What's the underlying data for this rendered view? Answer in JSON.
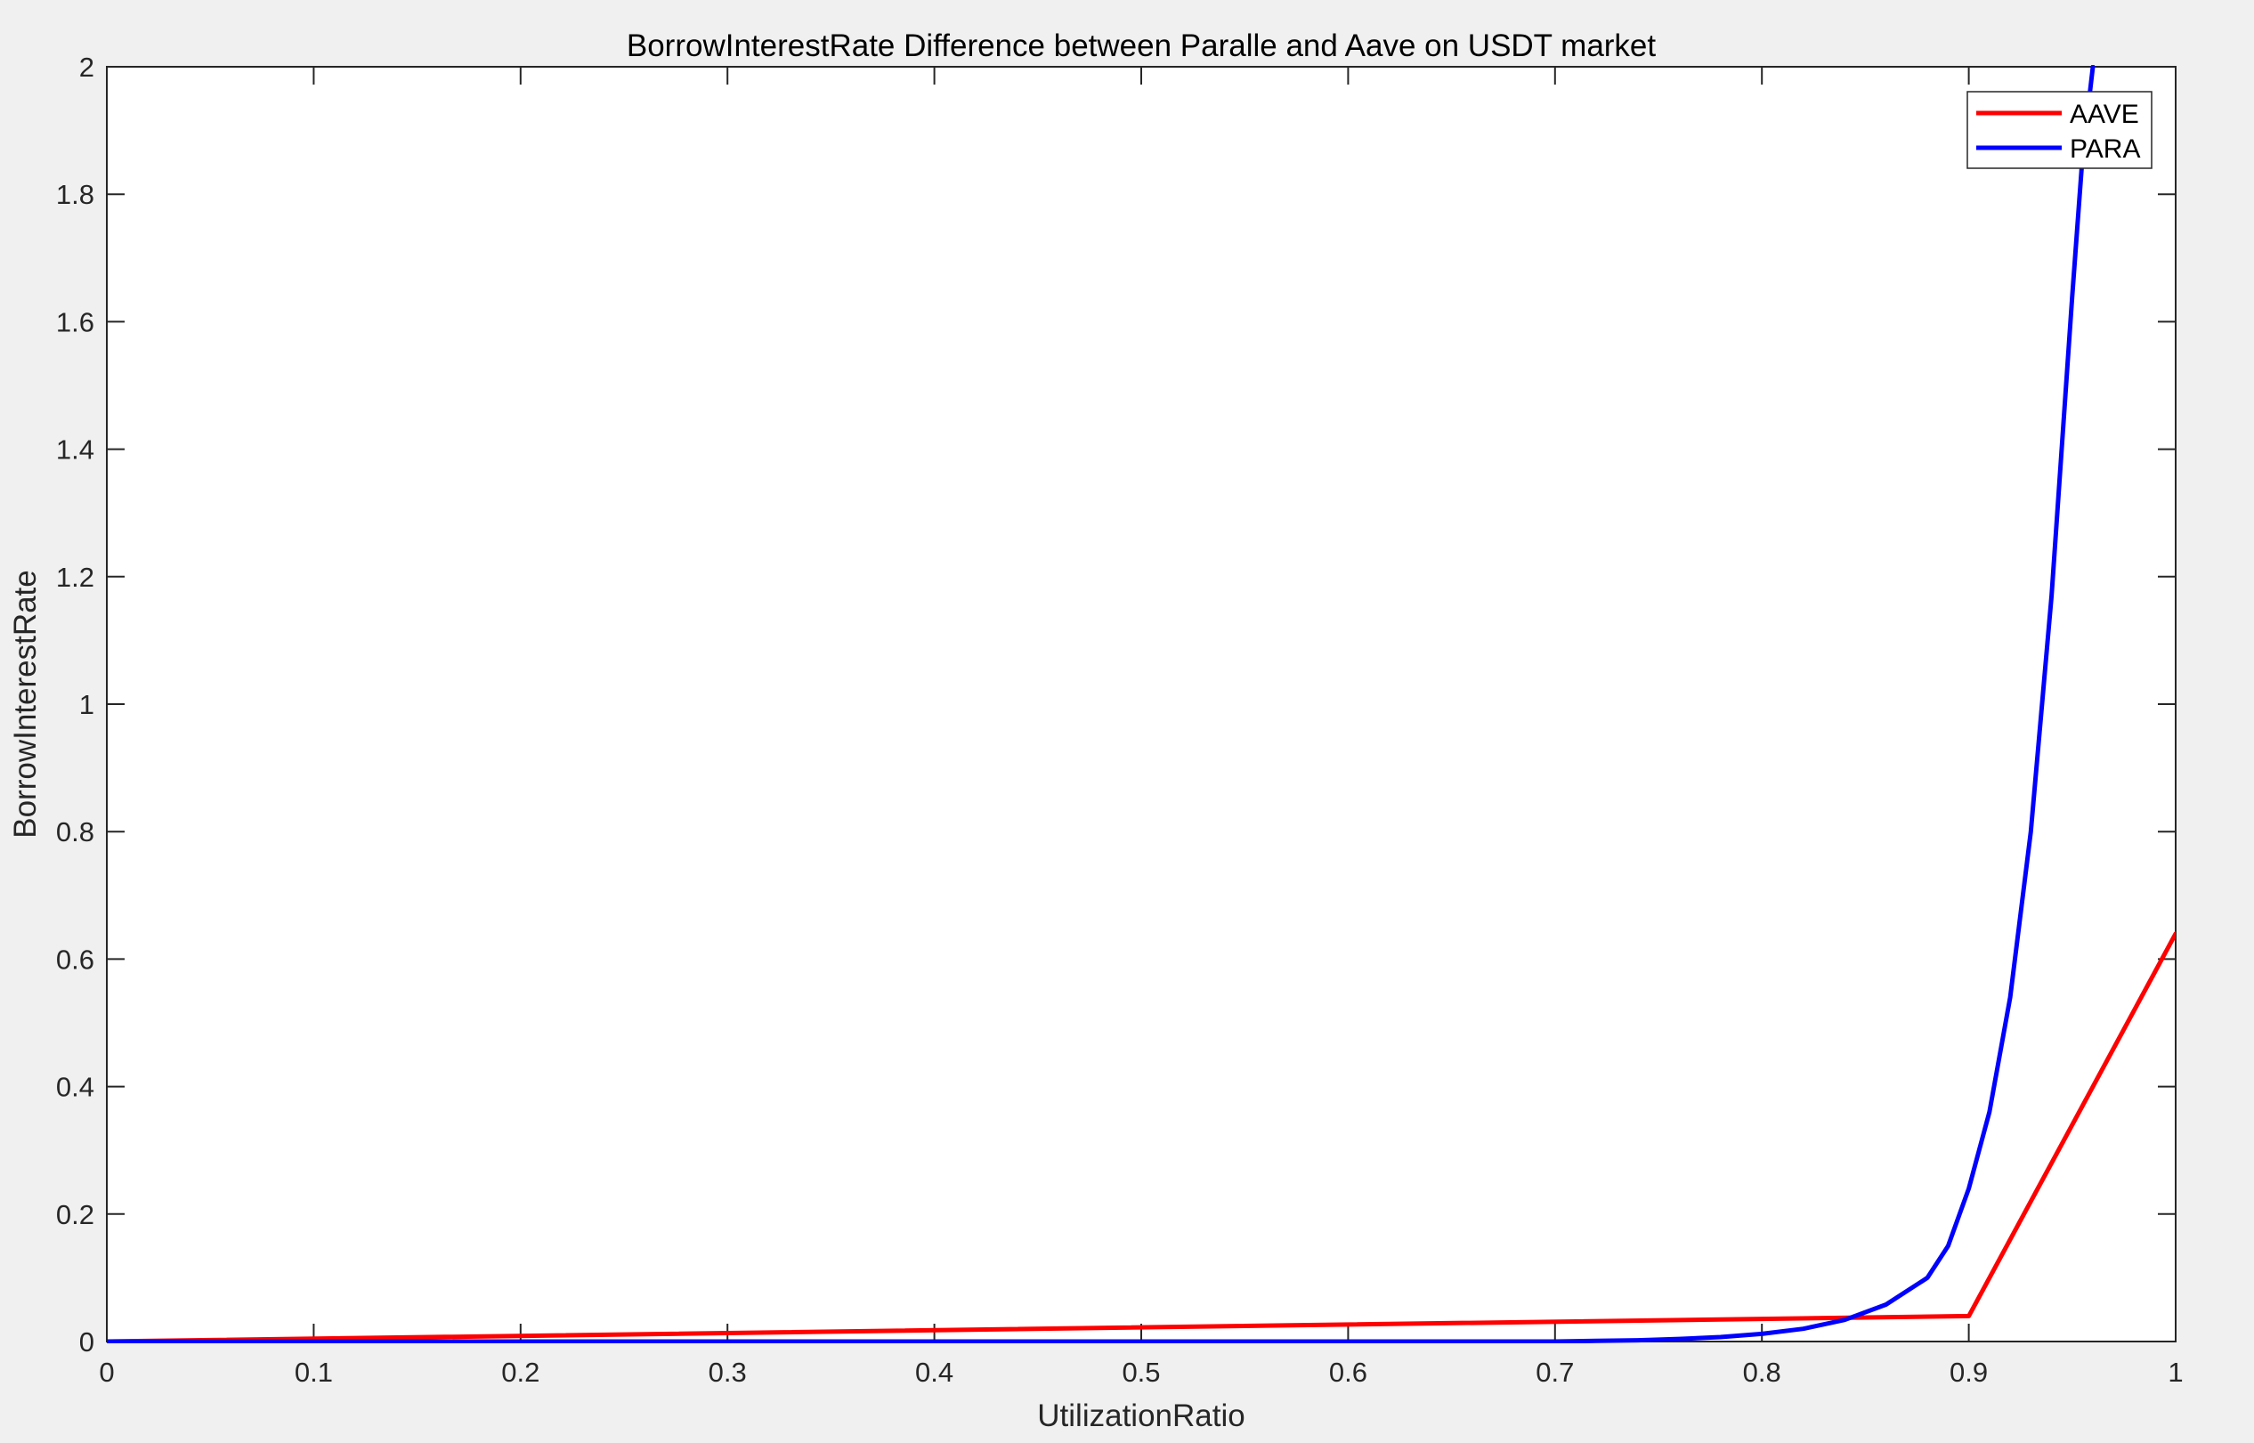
{
  "chart_data": {
    "type": "line",
    "title": "BorrowInterestRate Difference between Paralle and Aave on USDT market",
    "xlabel": "UtilizationRatio",
    "ylabel": "BorrowInterestRate",
    "xlim": [
      0,
      1
    ],
    "ylim": [
      0,
      2
    ],
    "xticks": [
      "0",
      "0.1",
      "0.2",
      "0.3",
      "0.4",
      "0.5",
      "0.6",
      "0.7",
      "0.8",
      "0.9",
      "1"
    ],
    "yticks": [
      "0",
      "0.2",
      "0.4",
      "0.6",
      "0.8",
      "1",
      "1.2",
      "1.4",
      "1.6",
      "1.8",
      "2"
    ],
    "grid": false,
    "legend_position": "top-right",
    "series": [
      {
        "name": "AAVE",
        "color": "#ff0000",
        "x": [
          0,
          0.9,
          1.0
        ],
        "y": [
          0,
          0.04,
          0.64
        ]
      },
      {
        "name": "PARA",
        "color": "#0000ff",
        "x": [
          0,
          0.5,
          0.6,
          0.7,
          0.72,
          0.74,
          0.76,
          0.78,
          0.8,
          0.82,
          0.84,
          0.86,
          0.88,
          0.89,
          0.9,
          0.91,
          0.92,
          0.93,
          0.94,
          0.95,
          0.955,
          0.96
        ],
        "y": [
          0,
          0,
          0,
          0,
          0.001,
          0.002,
          0.004,
          0.007,
          0.012,
          0.02,
          0.034,
          0.058,
          0.1,
          0.15,
          0.24,
          0.36,
          0.54,
          0.8,
          1.17,
          1.64,
          1.86,
          2.0
        ]
      }
    ]
  }
}
